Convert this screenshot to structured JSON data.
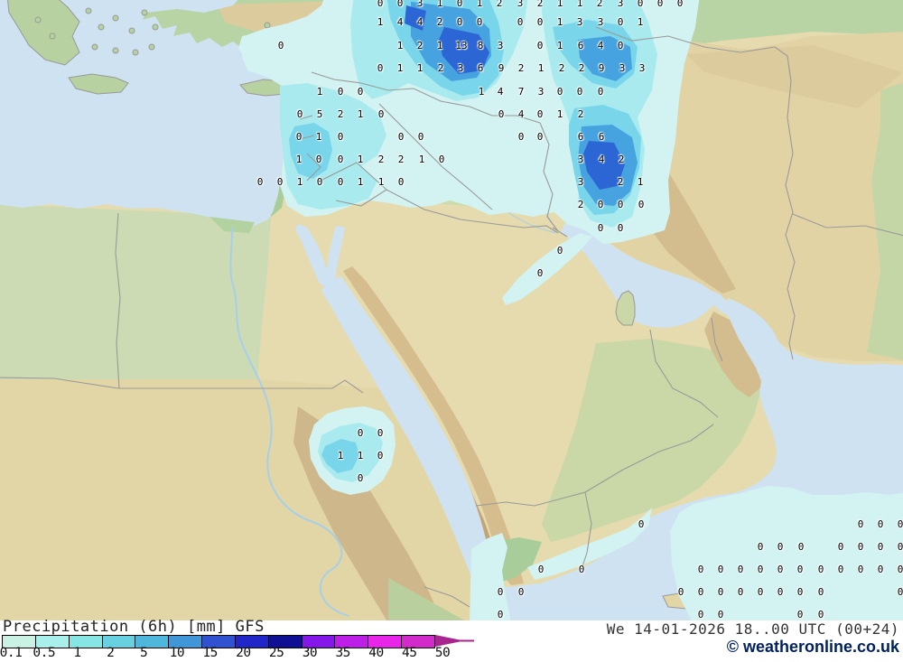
{
  "legend": {
    "title": "Precipitation (6h) [mm] GFS",
    "ticks": [
      "0.1",
      "0.5",
      "1",
      "2",
      "5",
      "10",
      "15",
      "20",
      "25",
      "30",
      "35",
      "40",
      "45",
      "50"
    ],
    "segment_colors": [
      "#c9f1e4",
      "#a9f0ec",
      "#85e6e4",
      "#67d1e1",
      "#4fb6dc",
      "#3f97d8",
      "#3052d0",
      "#2026c8",
      "#101095",
      "#8517ea",
      "#bd1fe8",
      "#e925e9",
      "#d32acb"
    ],
    "arrow_color": "#a9248f"
  },
  "status_bar": {
    "datetime": "We 14-01-2026 18..00 UTC (00+24)",
    "copyright": "© weatheronline.co.uk"
  },
  "map": {
    "svg_fills": {
      "sea": "#cfe2f1",
      "land": "#e5dbae",
      "turkey-green": "#b8d4a4",
      "mtn-tan": "#dccb9c",
      "iran-tan": "#e2d3a5",
      "zagros": "#d3bd8f",
      "steppe-green": "#c4d6a6",
      "fertile-green": "#ccdcad",
      "levant-green": "#a8cd9a",
      "egypt-green": "#ccdbb3",
      "sudan-tan": "#e3d6a6",
      "coast-brown": "#cdb78b",
      "hejaz-brown": "#d5bd8e",
      "asir-brown": "#c3a478",
      "east-green": "#c9d8a6",
      "horn-green": "#b9d09e",
      "island-green": "#b7d2a0",
      "delta-green": "#b2d2a0",
      "lake-blue": "#8fc4e4"
    },
    "svg_strokes": {
      "border": "#9a9a9a",
      "river": "#a6cfe8",
      "island-edge": "#999999"
    },
    "precip_levels": [
      "#d2f3f1",
      "#a9eaee",
      "#79d5ea",
      "#47a3e0",
      "#2c66d4"
    ],
    "precip_values": [
      [
        421,
        4,
        "0"
      ],
      [
        443,
        4,
        "0"
      ],
      [
        465,
        4,
        "3"
      ],
      [
        487,
        4,
        "1"
      ],
      [
        509,
        4,
        "0"
      ],
      [
        531,
        4,
        "1"
      ],
      [
        553,
        4,
        "2"
      ],
      [
        576,
        4,
        "3"
      ],
      [
        598,
        4,
        "2"
      ],
      [
        620,
        4,
        "1"
      ],
      [
        642,
        4,
        "1"
      ],
      [
        664,
        4,
        "2"
      ],
      [
        687,
        4,
        "3"
      ],
      [
        709,
        4,
        "0"
      ],
      [
        731,
        4,
        "0"
      ],
      [
        753,
        4,
        "0"
      ],
      [
        421,
        25,
        "1"
      ],
      [
        443,
        25,
        "4"
      ],
      [
        465,
        25,
        "4"
      ],
      [
        487,
        25,
        "2"
      ],
      [
        509,
        25,
        "0"
      ],
      [
        531,
        25,
        "0"
      ],
      [
        576,
        25,
        "0"
      ],
      [
        598,
        25,
        "0"
      ],
      [
        620,
        25,
        "1"
      ],
      [
        642,
        25,
        "3"
      ],
      [
        665,
        25,
        "3"
      ],
      [
        687,
        25,
        "0"
      ],
      [
        709,
        25,
        "1"
      ],
      [
        311,
        51,
        "0"
      ],
      [
        443,
        51,
        "1"
      ],
      [
        465,
        51,
        "2"
      ],
      [
        487,
        51,
        "1"
      ],
      [
        511,
        51,
        "13"
      ],
      [
        532,
        51,
        "8"
      ],
      [
        554,
        51,
        "3"
      ],
      [
        598,
        51,
        "0"
      ],
      [
        620,
        51,
        "1"
      ],
      [
        643,
        51,
        "6"
      ],
      [
        665,
        51,
        "4"
      ],
      [
        687,
        51,
        "0"
      ],
      [
        421,
        76,
        "0"
      ],
      [
        443,
        76,
        "1"
      ],
      [
        465,
        76,
        "1"
      ],
      [
        488,
        76,
        "2"
      ],
      [
        510,
        76,
        "3"
      ],
      [
        532,
        76,
        "6"
      ],
      [
        555,
        76,
        "9"
      ],
      [
        577,
        76,
        "2"
      ],
      [
        599,
        76,
        "1"
      ],
      [
        622,
        76,
        "2"
      ],
      [
        644,
        76,
        "2"
      ],
      [
        666,
        76,
        "9"
      ],
      [
        689,
        76,
        "3"
      ],
      [
        711,
        76,
        "3"
      ],
      [
        354,
        102,
        "1"
      ],
      [
        377,
        102,
        "0"
      ],
      [
        399,
        102,
        "0"
      ],
      [
        533,
        102,
        "1"
      ],
      [
        554,
        102,
        "4"
      ],
      [
        577,
        102,
        "7"
      ],
      [
        599,
        102,
        "3"
      ],
      [
        620,
        102,
        "0"
      ],
      [
        642,
        102,
        "0"
      ],
      [
        665,
        102,
        "0"
      ],
      [
        332,
        127,
        "0"
      ],
      [
        354,
        127,
        "5"
      ],
      [
        377,
        127,
        "2"
      ],
      [
        399,
        127,
        "1"
      ],
      [
        422,
        127,
        "0"
      ],
      [
        555,
        127,
        "0"
      ],
      [
        577,
        127,
        "4"
      ],
      [
        598,
        127,
        "0"
      ],
      [
        620,
        127,
        "1"
      ],
      [
        643,
        127,
        "2"
      ],
      [
        331,
        152,
        "0"
      ],
      [
        353,
        152,
        "1"
      ],
      [
        377,
        152,
        "0"
      ],
      [
        444,
        152,
        "0"
      ],
      [
        466,
        152,
        "0"
      ],
      [
        577,
        152,
        "0"
      ],
      [
        598,
        152,
        "0"
      ],
      [
        643,
        152,
        "6"
      ],
      [
        666,
        152,
        "6"
      ],
      [
        331,
        177,
        "1"
      ],
      [
        353,
        177,
        "0"
      ],
      [
        377,
        177,
        "0"
      ],
      [
        399,
        177,
        "1"
      ],
      [
        422,
        177,
        "2"
      ],
      [
        444,
        177,
        "2"
      ],
      [
        467,
        177,
        "1"
      ],
      [
        489,
        177,
        "0"
      ],
      [
        643,
        177,
        "3"
      ],
      [
        666,
        177,
        "4"
      ],
      [
        688,
        177,
        "2"
      ],
      [
        288,
        202,
        "0"
      ],
      [
        310,
        202,
        "0"
      ],
      [
        332,
        202,
        "1"
      ],
      [
        354,
        202,
        "0"
      ],
      [
        377,
        202,
        "0"
      ],
      [
        399,
        202,
        "1"
      ],
      [
        422,
        202,
        "1"
      ],
      [
        444,
        202,
        "0"
      ],
      [
        643,
        202,
        "3"
      ],
      [
        687,
        202,
        "2"
      ],
      [
        709,
        202,
        "1"
      ],
      [
        643,
        227,
        "2"
      ],
      [
        665,
        227,
        "0"
      ],
      [
        687,
        227,
        "0"
      ],
      [
        710,
        227,
        "0"
      ],
      [
        665,
        253,
        "0"
      ],
      [
        687,
        253,
        "0"
      ],
      [
        620,
        278,
        "0"
      ],
      [
        598,
        303,
        "0"
      ],
      [
        399,
        480,
        "0"
      ],
      [
        421,
        480,
        "0"
      ],
      [
        377,
        505,
        "1"
      ],
      [
        399,
        505,
        "1"
      ],
      [
        421,
        505,
        "0"
      ],
      [
        399,
        530,
        "0"
      ],
      [
        710,
        581,
        "0"
      ],
      [
        953,
        581,
        "0"
      ],
      [
        975,
        581,
        "0"
      ],
      [
        997,
        581,
        "0"
      ],
      [
        842,
        606,
        "0"
      ],
      [
        864,
        606,
        "0"
      ],
      [
        887,
        606,
        "0"
      ],
      [
        931,
        606,
        "0"
      ],
      [
        953,
        606,
        "0"
      ],
      [
        975,
        606,
        "0"
      ],
      [
        997,
        606,
        "0"
      ],
      [
        599,
        631,
        "0"
      ],
      [
        644,
        631,
        "0"
      ],
      [
        776,
        631,
        "0"
      ],
      [
        798,
        631,
        "0"
      ],
      [
        820,
        631,
        "0"
      ],
      [
        842,
        631,
        "0"
      ],
      [
        864,
        631,
        "0"
      ],
      [
        886,
        631,
        "0"
      ],
      [
        909,
        631,
        "0"
      ],
      [
        931,
        631,
        "0"
      ],
      [
        953,
        631,
        "0"
      ],
      [
        975,
        631,
        "0"
      ],
      [
        997,
        631,
        "0"
      ],
      [
        554,
        656,
        "0"
      ],
      [
        577,
        656,
        "0"
      ],
      [
        754,
        656,
        "0"
      ],
      [
        776,
        656,
        "0"
      ],
      [
        798,
        656,
        "0"
      ],
      [
        820,
        656,
        "0"
      ],
      [
        842,
        656,
        "0"
      ],
      [
        864,
        656,
        "0"
      ],
      [
        886,
        656,
        "0"
      ],
      [
        909,
        656,
        "0"
      ],
      [
        997,
        656,
        "0"
      ],
      [
        554,
        681,
        "0"
      ],
      [
        776,
        681,
        "0"
      ],
      [
        798,
        681,
        "0"
      ],
      [
        886,
        681,
        "0"
      ],
      [
        909,
        681,
        "0"
      ]
    ]
  }
}
